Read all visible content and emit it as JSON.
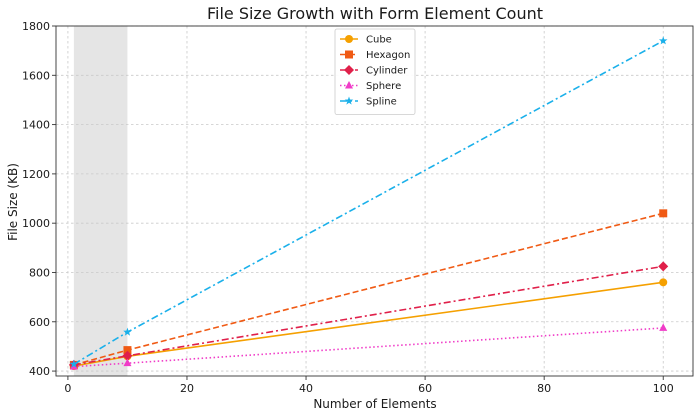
{
  "chart_data": {
    "type": "line",
    "title": "File Size Growth with Form Element Count",
    "xlabel": "Number of Elements",
    "ylabel": "File Size (KB)",
    "xlim": [
      -2,
      105
    ],
    "ylim": [
      380,
      1800
    ],
    "xticks": [
      0,
      20,
      40,
      60,
      80,
      100
    ],
    "yticks": [
      400,
      600,
      800,
      1000,
      1200,
      1400,
      1600,
      1800
    ],
    "grid": true,
    "legend_position": "top-center",
    "highlight_span": {
      "x": [
        1,
        10
      ],
      "color": "#e5e5e5"
    },
    "x": [
      1,
      10,
      100
    ],
    "series": [
      {
        "name": "Cube",
        "values": [
          420,
          460,
          760
        ],
        "color": "#f5a000",
        "marker": "circle",
        "dash": "solid"
      },
      {
        "name": "Hexagon",
        "values": [
          425,
          485,
          1040
        ],
        "color": "#f05a14",
        "marker": "square",
        "dash": "dashed"
      },
      {
        "name": "Cylinder",
        "values": [
          425,
          462,
          825
        ],
        "color": "#e0204a",
        "marker": "diamond",
        "dash": "dashdot"
      },
      {
        "name": "Sphere",
        "values": [
          418,
          432,
          575
        ],
        "color": "#f03cc8",
        "marker": "triangle",
        "dash": "dotted"
      },
      {
        "name": "Spline",
        "values": [
          428,
          558,
          1740
        ],
        "color": "#1ab0ea",
        "marker": "star",
        "dash": "dashdot"
      }
    ]
  }
}
